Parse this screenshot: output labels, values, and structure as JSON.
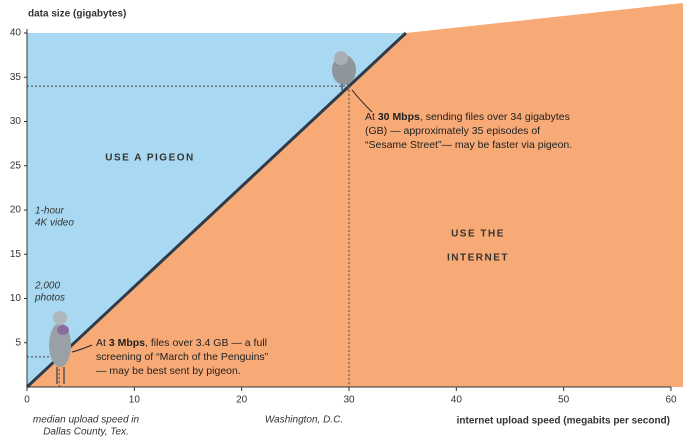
{
  "chart_data": {
    "type": "line",
    "y_axis_title": "data size (gigabytes)",
    "x_axis_title": "internet upload speed (megabits per second)",
    "xlim": [
      0,
      60
    ],
    "ylim": [
      0,
      40
    ],
    "xticks": [
      0,
      10,
      20,
      30,
      40,
      50,
      60
    ],
    "yticks": [
      5,
      10,
      15,
      20,
      25,
      30,
      35,
      40
    ],
    "series": [
      {
        "color": "#2f3b48",
        "x": [
          0,
          3,
          30,
          35.3
        ],
        "values": [
          0,
          3.4,
          34,
          40
        ]
      }
    ],
    "region_colors": {
      "above": "#a9d9f2",
      "below": "#f7aa76"
    },
    "regions": [
      {
        "lines": [
          "USE A PIGEON"
        ],
        "color": "#2a6db3"
      },
      {
        "lines": [
          "USE THE",
          "INTERNET"
        ],
        "color": "#e9741f"
      }
    ],
    "y_notes": [
      {
        "lines": [
          "1-hour",
          "4K video"
        ]
      },
      {
        "lines": [
          "2,000",
          "photos"
        ]
      }
    ],
    "highlights": [
      {
        "x": 3,
        "y": 3.4,
        "x_label": [
          "median upload speed in",
          "Dallas County, Tex."
        ],
        "prefix": "At ",
        "bold": "3 Mbps",
        "text": ", files over 3.4 GB — a full screening of “March of the Penguins” — may be best sent by pigeon."
      },
      {
        "x": 30,
        "y": 34,
        "x_label": [
          "Washington, D.C."
        ],
        "prefix": "At ",
        "bold": "30 Mbps",
        "text": ", sending files over 34 gigabytes (GB) — approximately 35 episodes of “Sesame Street”— may be faster via pigeon."
      }
    ]
  }
}
